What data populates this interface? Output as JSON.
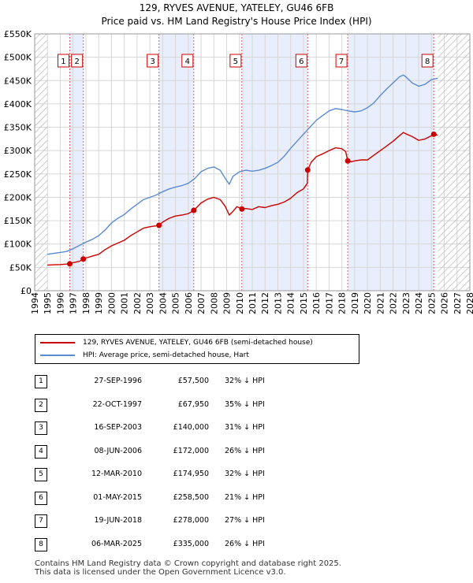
{
  "title": "129, RYVES AVENUE, YATELEY, GU46 6FB",
  "subtitle": "Price paid vs. HM Land Registry's House Price Index (HPI)",
  "colors": {
    "price": "#cc0000",
    "hpi": "#5b8bd0",
    "shade": "#e8eefb",
    "hatch": "#bbbbbb",
    "marker": "#cc0000"
  },
  "chart_data": {
    "type": "line",
    "title": "Price paid vs. HM Land Registry's House Price Index (HPI)",
    "xlim": [
      1994,
      2028
    ],
    "ylim": [
      0,
      550000
    ],
    "x_ticks": [
      "1994",
      "1995",
      "1996",
      "1997",
      "1998",
      "1999",
      "2000",
      "2001",
      "2002",
      "2003",
      "2004",
      "2005",
      "2006",
      "2007",
      "2008",
      "2009",
      "2010",
      "2011",
      "2012",
      "2013",
      "2014",
      "2015",
      "2016",
      "2017",
      "2018",
      "2019",
      "2020",
      "2021",
      "2022",
      "2023",
      "2024",
      "2025",
      "2026",
      "2027",
      "2028"
    ],
    "y_ticks": [
      {
        "value": 0,
        "label": "£0"
      },
      {
        "value": 50000,
        "label": "£50K"
      },
      {
        "value": 100000,
        "label": "£100K"
      },
      {
        "value": 150000,
        "label": "£150K"
      },
      {
        "value": 200000,
        "label": "£200K"
      },
      {
        "value": 250000,
        "label": "£250K"
      },
      {
        "value": 300000,
        "label": "£300K"
      },
      {
        "value": 350000,
        "label": "£350K"
      },
      {
        "value": 400000,
        "label": "£400K"
      },
      {
        "value": 450000,
        "label": "£450K"
      },
      {
        "value": 500000,
        "label": "£500K"
      },
      {
        "value": 550000,
        "label": "£550K"
      }
    ],
    "data_end": 2025.5,
    "series": [
      {
        "name": "129, RYVES AVENUE, YATELEY, GU46 6FB (semi-detached house)",
        "color": "#cc0000",
        "x": [
          1995.0,
          1995.5,
          1996.0,
          1996.5,
          1996.74,
          1997.0,
          1997.5,
          1997.8,
          1998.0,
          1998.5,
          1999.0,
          1999.5,
          2000.0,
          2000.5,
          2001.0,
          2001.5,
          2002.0,
          2002.5,
          2003.0,
          2003.5,
          2003.71,
          2004.0,
          2004.5,
          2005.0,
          2005.5,
          2006.0,
          2006.43,
          2007.0,
          2007.5,
          2008.0,
          2008.5,
          2008.9,
          2009.2,
          2009.5,
          2009.8,
          2010.19,
          2010.5,
          2011.0,
          2011.5,
          2012.0,
          2012.5,
          2013.0,
          2013.5,
          2014.0,
          2014.5,
          2015.0,
          2015.3,
          2015.33,
          2015.6,
          2016.0,
          2016.5,
          2017.0,
          2017.5,
          2018.0,
          2018.3,
          2018.46,
          2018.7,
          2019.0,
          2019.5,
          2020.0,
          2020.5,
          2021.0,
          2021.5,
          2022.0,
          2022.5,
          2022.8,
          2023.0,
          2023.5,
          2024.0,
          2024.5,
          2025.0,
          2025.18,
          2025.5
        ],
        "values": [
          55000,
          55500,
          56000,
          57000,
          57500,
          60000,
          63000,
          67950,
          70000,
          74000,
          78000,
          88000,
          96000,
          102000,
          108000,
          118000,
          126000,
          134000,
          137000,
          139000,
          140000,
          147000,
          155000,
          160000,
          162000,
          165000,
          172000,
          188000,
          196000,
          200000,
          195000,
          180000,
          162000,
          170000,
          180000,
          174950,
          176000,
          174000,
          180000,
          178000,
          182000,
          185000,
          190000,
          198000,
          210000,
          218000,
          230000,
          258500,
          275000,
          287000,
          293000,
          300000,
          306000,
          304000,
          298000,
          278000,
          276000,
          278000,
          280000,
          280000,
          290000,
          300000,
          310000,
          320000,
          332000,
          339000,
          336000,
          330000,
          322000,
          325000,
          332000,
          335000,
          333000
        ]
      },
      {
        "name": "HPI: Average price, semi-detached house, Hart",
        "color": "#5b8bd0",
        "x": [
          1995.0,
          1995.5,
          1996.0,
          1996.5,
          1997.0,
          1997.5,
          1998.0,
          1998.5,
          1999.0,
          1999.5,
          2000.0,
          2000.5,
          2001.0,
          2001.5,
          2002.0,
          2002.5,
          2003.0,
          2003.5,
          2004.0,
          2004.5,
          2005.0,
          2005.5,
          2006.0,
          2006.5,
          2007.0,
          2007.5,
          2008.0,
          2008.5,
          2008.9,
          2009.2,
          2009.5,
          2010.0,
          2010.5,
          2011.0,
          2011.5,
          2012.0,
          2012.5,
          2013.0,
          2013.5,
          2014.0,
          2014.5,
          2015.0,
          2015.5,
          2016.0,
          2016.5,
          2017.0,
          2017.5,
          2018.0,
          2018.5,
          2019.0,
          2019.5,
          2020.0,
          2020.5,
          2021.0,
          2021.5,
          2022.0,
          2022.5,
          2022.8,
          2023.0,
          2023.5,
          2024.0,
          2024.5,
          2025.0,
          2025.5
        ],
        "values": [
          78000,
          80000,
          82000,
          84000,
          90000,
          97000,
          104000,
          110000,
          118000,
          130000,
          145000,
          155000,
          163000,
          175000,
          185000,
          195000,
          200000,
          205000,
          212000,
          218000,
          222000,
          225000,
          230000,
          240000,
          255000,
          262000,
          265000,
          258000,
          240000,
          228000,
          245000,
          255000,
          258000,
          256000,
          258000,
          262000,
          268000,
          275000,
          288000,
          305000,
          320000,
          335000,
          350000,
          365000,
          375000,
          385000,
          390000,
          388000,
          385000,
          383000,
          385000,
          392000,
          402000,
          418000,
          432000,
          445000,
          458000,
          462000,
          458000,
          445000,
          438000,
          442000,
          452000,
          455000
        ]
      }
    ],
    "transactions": [
      {
        "label": "1",
        "x": 1996.74,
        "price": 57500
      },
      {
        "label": "2",
        "x": 1997.8,
        "price": 67950
      },
      {
        "label": "3",
        "x": 2003.71,
        "price": 140000
      },
      {
        "label": "4",
        "x": 2006.43,
        "price": 172000
      },
      {
        "label": "5",
        "x": 2010.19,
        "price": 174950
      },
      {
        "label": "6",
        "x": 2015.33,
        "price": 258500
      },
      {
        "label": "7",
        "x": 2018.46,
        "price": 278000
      },
      {
        "label": "8",
        "x": 2025.18,
        "price": 335000
      }
    ],
    "shaded_ranges": [
      [
        1996.74,
        1997.8
      ],
      [
        2003.71,
        2006.43
      ],
      [
        2010.19,
        2015.33
      ],
      [
        2018.46,
        2025.18
      ]
    ]
  },
  "legend": {
    "price_label": "129, RYVES AVENUE, YATELEY, GU46 6FB (semi-detached house)",
    "hpi_label": "HPI: Average price, semi-detached house, Hart"
  },
  "table": [
    {
      "num": "1",
      "date": "27-SEP-1996",
      "price": "£57,500",
      "hpi": "32% ↓ HPI"
    },
    {
      "num": "2",
      "date": "22-OCT-1997",
      "price": "£67,950",
      "hpi": "35% ↓ HPI"
    },
    {
      "num": "3",
      "date": "16-SEP-2003",
      "price": "£140,000",
      "hpi": "31% ↓ HPI"
    },
    {
      "num": "4",
      "date": "08-JUN-2006",
      "price": "£172,000",
      "hpi": "26% ↓ HPI"
    },
    {
      "num": "5",
      "date": "12-MAR-2010",
      "price": "£174,950",
      "hpi": "32% ↓ HPI"
    },
    {
      "num": "6",
      "date": "01-MAY-2015",
      "price": "£258,500",
      "hpi": "21% ↓ HPI"
    },
    {
      "num": "7",
      "date": "19-JUN-2018",
      "price": "£278,000",
      "hpi": "27% ↓ HPI"
    },
    {
      "num": "8",
      "date": "06-MAR-2025",
      "price": "£335,000",
      "hpi": "26% ↓ HPI"
    }
  ],
  "footer": {
    "line1": "Contains HM Land Registry data © Crown copyright and database right 2025.",
    "line2": "This data is licensed under the Open Government Licence v3.0."
  }
}
